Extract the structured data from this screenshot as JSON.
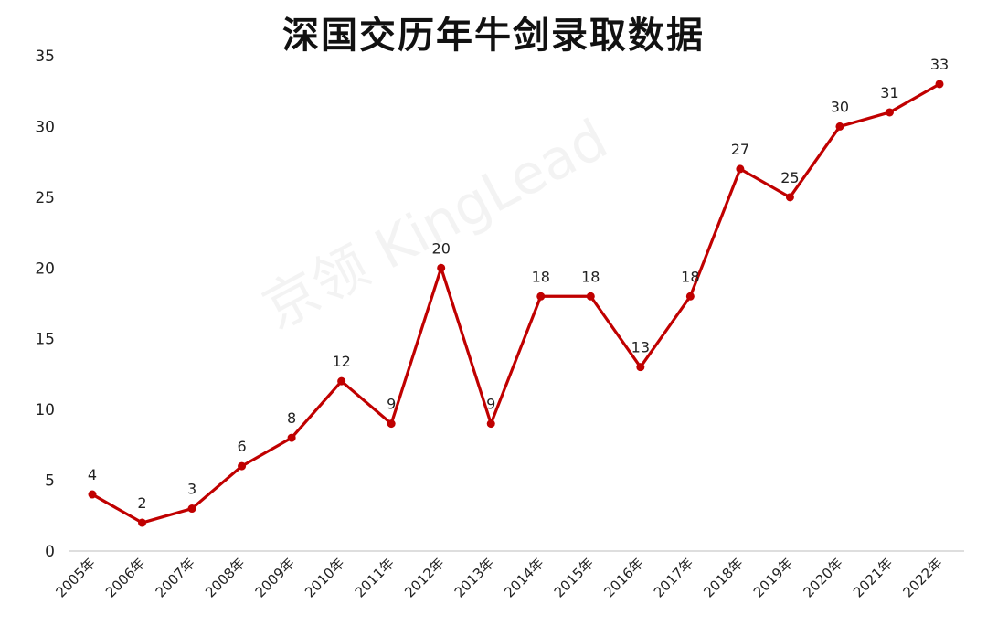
{
  "chart_data": {
    "type": "line",
    "title": "深国交历年牛剑录取数据",
    "categories": [
      "2005年",
      "2006年",
      "2007年",
      "2008年",
      "2009年",
      "2010年",
      "2011年",
      "2012年",
      "2013年",
      "2014年",
      "2015年",
      "2016年",
      "2017年",
      "2018年",
      "2019年",
      "2020年",
      "2021年",
      "2022年"
    ],
    "values": [
      4,
      2,
      3,
      6,
      8,
      12,
      9,
      20,
      9,
      18,
      18,
      13,
      18,
      27,
      25,
      30,
      31,
      33
    ],
    "ylim": [
      0,
      35
    ],
    "yticks": [
      0,
      5,
      10,
      15,
      20,
      25,
      30,
      35
    ],
    "xlabel": "",
    "ylabel": "",
    "grid": false,
    "data_labels": true,
    "line_color": "#c00000"
  },
  "watermark": "京领 KingLead"
}
